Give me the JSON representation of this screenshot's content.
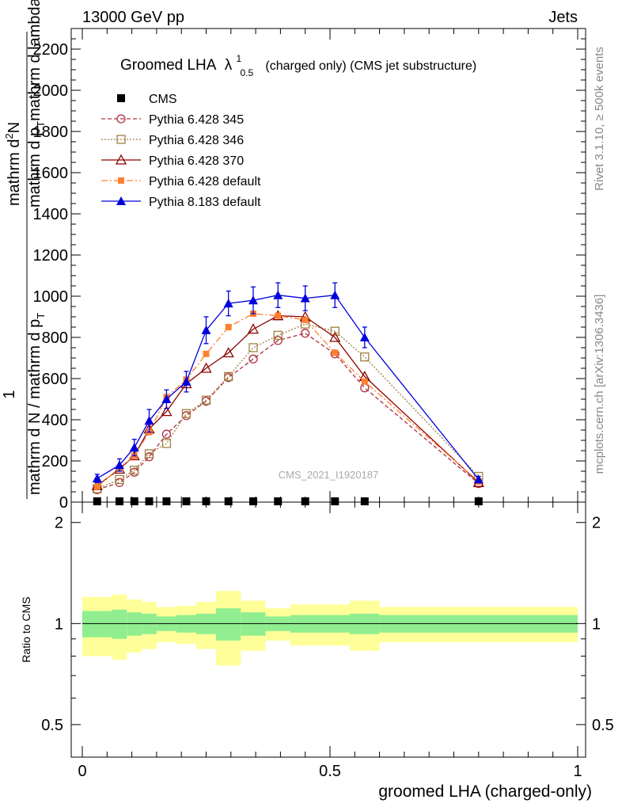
{
  "header": {
    "left": "13000 GeV pp",
    "right": "Jets"
  },
  "side_labels": {
    "rivet": "Rivet 3.1.10, ≥ 500k events",
    "mcplots": "mcplots.cern.ch [arXiv:1306.3436]"
  },
  "watermark": "CMS_2021_I1920187",
  "colors": {
    "cms": "#000000",
    "p345": "#b03040",
    "p346": "#a08040",
    "p370": "#8b0000",
    "p6def": "#ff8030",
    "p8def": "#0000dd",
    "band_inner": "#90ee90",
    "band_outer": "#ffff99"
  },
  "chart_data": [
    {
      "type": "line",
      "title_main": "Groomed LHA",
      "title_lambda": "λ",
      "title_sup": "1",
      "title_sub": "0.5",
      "title_rest": "(charged only) (CMS jet substructure)",
      "ylabel_top_num": "mathrm d",
      "ylabel_top_sup": "2",
      "ylabel_top_n": "N",
      "ylabel_top_den": "mathrm d p",
      "ylabel_top_den_sub": "T",
      "ylabel_top_den2": "mathrm d lambda",
      "ylabel_bottom_num": "1",
      "ylabel_bottom_den": "mathrm d N / mathrm d p",
      "ylabel_bottom_den_sub": "T",
      "ylim": [
        0,
        2300
      ],
      "yticks": [
        0,
        200,
        400,
        600,
        800,
        1000,
        1200,
        1400,
        1600,
        1800,
        2000,
        2200
      ],
      "ytick_labels": [
        "0",
        "200",
        "400",
        "600",
        "800",
        "1000",
        "1200",
        "1400",
        "1600",
        "1800",
        "2000",
        "2200"
      ],
      "xlim": [
        0,
        1
      ],
      "series": [
        {
          "name": "CMS",
          "key": "cms",
          "marker": "square-filled",
          "dash": "none",
          "x": [
            0.03,
            0.075,
            0.105,
            0.135,
            0.17,
            0.21,
            0.25,
            0.295,
            0.345,
            0.395,
            0.45,
            0.51,
            0.57,
            0.8
          ],
          "y": [
            0,
            0,
            0,
            0,
            0,
            0,
            0,
            0,
            0,
            0,
            0,
            0,
            0,
            0
          ]
        },
        {
          "name": "Pythia 6.428 345",
          "key": "p345",
          "marker": "circle-open",
          "dash": "5,3",
          "x": [
            0.03,
            0.075,
            0.105,
            0.135,
            0.17,
            0.21,
            0.25,
            0.295,
            0.345,
            0.395,
            0.45,
            0.51,
            0.57,
            0.8
          ],
          "y": [
            60,
            95,
            145,
            220,
            330,
            420,
            490,
            605,
            695,
            785,
            820,
            720,
            555,
            90
          ]
        },
        {
          "name": "Pythia 6.428 346",
          "key": "p346",
          "marker": "square-open",
          "dash": "2,2",
          "x": [
            0.03,
            0.075,
            0.105,
            0.135,
            0.17,
            0.21,
            0.25,
            0.295,
            0.345,
            0.395,
            0.45,
            0.51,
            0.57,
            0.8
          ],
          "y": [
            65,
            110,
            155,
            235,
            285,
            430,
            495,
            610,
            750,
            810,
            865,
            830,
            705,
            125
          ]
        },
        {
          "name": "Pythia 6.428 370",
          "key": "p370",
          "marker": "triangle-open",
          "dash": "none",
          "x": [
            0.03,
            0.075,
            0.105,
            0.135,
            0.17,
            0.21,
            0.25,
            0.295,
            0.345,
            0.395,
            0.45,
            0.51,
            0.57,
            0.8
          ],
          "y": [
            80,
            160,
            225,
            355,
            440,
            575,
            650,
            725,
            840,
            905,
            900,
            800,
            610,
            95
          ]
        },
        {
          "name": "Pythia 6.428 default",
          "key": "p6def",
          "marker": "square-filled-small",
          "dash": "8,3,2,3",
          "x": [
            0.03,
            0.075,
            0.105,
            0.135,
            0.17,
            0.21,
            0.25,
            0.295,
            0.345,
            0.395,
            0.45,
            0.51,
            0.57,
            0.8
          ],
          "y": [
            75,
            165,
            225,
            340,
            510,
            595,
            720,
            850,
            915,
            905,
            885,
            725,
            585,
            100
          ]
        },
        {
          "name": "Pythia 8.183 default",
          "key": "p8def",
          "marker": "triangle-filled",
          "dash": "none",
          "x": [
            0.03,
            0.075,
            0.105,
            0.135,
            0.17,
            0.21,
            0.25,
            0.295,
            0.345,
            0.395,
            0.45,
            0.51,
            0.57,
            0.8
          ],
          "y": [
            115,
            180,
            265,
            395,
            500,
            585,
            835,
            965,
            980,
            1005,
            990,
            1005,
            800,
            110
          ],
          "err": [
            20,
            30,
            40,
            55,
            45,
            50,
            65,
            60,
            65,
            60,
            60,
            60,
            50,
            15
          ]
        }
      ]
    },
    {
      "type": "area",
      "ylabel": "Ratio to CMS",
      "ylim": [
        0.4,
        2.3
      ],
      "yticks": [
        0.5,
        1,
        2
      ],
      "ytick_labels": [
        "0.5",
        "1",
        "2"
      ],
      "xlabel": "groomed LHA (charged-only)",
      "xlim": [
        0,
        1
      ],
      "xticks": [
        0,
        0.5,
        1
      ],
      "xtick_labels": [
        "0",
        "0.5",
        "1"
      ],
      "bins": [
        0,
        0.06,
        0.09,
        0.12,
        0.15,
        0.19,
        0.23,
        0.27,
        0.32,
        0.37,
        0.42,
        0.48,
        0.54,
        0.6,
        1.0
      ],
      "inner_lo": [
        0.91,
        0.9,
        0.92,
        0.93,
        0.95,
        0.94,
        0.93,
        0.89,
        0.92,
        0.95,
        0.94,
        0.94,
        0.93,
        0.94
      ],
      "inner_hi": [
        1.09,
        1.1,
        1.08,
        1.07,
        1.05,
        1.06,
        1.07,
        1.11,
        1.08,
        1.05,
        1.06,
        1.06,
        1.07,
        1.06
      ],
      "outer_lo": [
        0.8,
        0.78,
        0.82,
        0.84,
        0.88,
        0.87,
        0.84,
        0.75,
        0.83,
        0.89,
        0.86,
        0.86,
        0.83,
        0.88
      ],
      "outer_hi": [
        1.2,
        1.22,
        1.18,
        1.16,
        1.12,
        1.13,
        1.16,
        1.25,
        1.17,
        1.11,
        1.14,
        1.14,
        1.17,
        1.12
      ],
      "reference": 1
    }
  ]
}
